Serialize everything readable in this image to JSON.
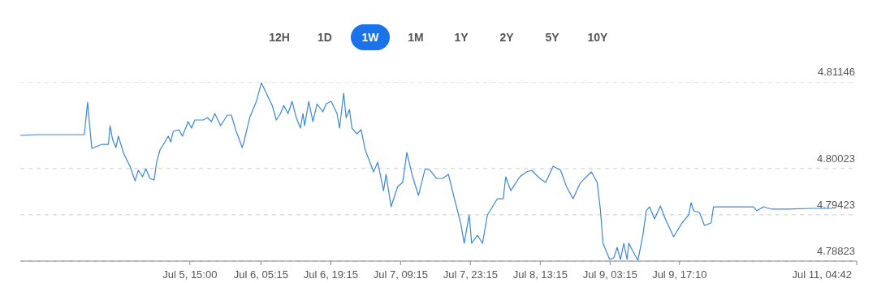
{
  "chart_data": {
    "type": "line",
    "annotations": [
      "12H",
      "1D",
      "1W",
      "1M",
      "1Y",
      "2Y",
      "5Y",
      "10Y"
    ],
    "x": [
      "--07-04T05:00",
      "--07-04T08:15",
      "--07-04T17:50",
      "--07-04T18:30",
      "--07-04T18:50",
      "--07-04T19:20",
      "--07-04T21:20",
      "--07-04T22:40",
      "--07-04T23:00",
      "--07-04T23:30",
      "--07-05T00:10",
      "--07-05T00:40",
      "--07-05T01:40",
      "--07-05T02:10",
      "--07-05T03:00",
      "--07-05T04:00",
      "--07-05T04:40",
      "--07-05T05:30",
      "--07-05T06:10",
      "--07-05T07:00",
      "--07-05T07:50",
      "--07-05T08:20",
      "--07-05T09:00",
      "--07-05T10:00",
      "--07-05T10:40",
      "--07-05T11:10",
      "--07-05T11:40",
      "--07-05T12:50",
      "--07-05T13:30",
      "--07-05T14:40",
      "--07-05T15:20",
      "--07-05T16:00",
      "--07-05T17:40",
      "--07-05T18:30",
      "--07-05T19:20",
      "--07-05T20:00",
      "--07-05T21:10",
      "--07-05T22:30",
      "--07-05T23:20",
      "--07-06T00:10",
      "--07-06T01:30",
      "--07-06T01:50",
      "--07-06T03:00",
      "--07-06T04:20",
      "--07-06T05:20",
      "--07-06T06:20",
      "--07-06T07:30",
      "--07-06T08:20",
      "--07-06T09:10",
      "--07-06T09:50",
      "--07-06T10:40",
      "--07-06T11:30",
      "--07-06T12:20",
      "--07-06T13:10",
      "--07-06T13:40",
      "--07-06T14:00",
      "--07-06T14:50",
      "--07-06T15:40",
      "--07-06T16:30",
      "--07-06T17:40",
      "--07-06T18:20",
      "--07-06T19:20",
      "--07-06T20:30",
      "--07-06T21:00",
      "--07-06T21:50",
      "--07-06T22:20",
      "--07-06T23:00",
      "--07-06T23:30",
      "--07-07T00:30",
      "--07-07T01:20",
      "--07-07T02:10",
      "--07-07T03:50",
      "--07-07T04:40",
      "--07-07T05:50",
      "--07-07T06:20",
      "--07-07T07:20",
      "--07-07T08:40",
      "--07-07T09:40",
      "--07-07T10:30",
      "--07-07T11:40",
      "--07-07T12:50",
      "--07-07T14:10",
      "--07-07T15:10",
      "--07-07T16:30",
      "--07-07T17:40",
      "--07-07T18:50",
      "--07-07T19:50",
      "--07-07T20:40",
      "--07-07T21:20",
      "--07-07T22:00",
      "--07-07T23:00",
      "--07-07T23:30",
      "--07-08T00:40",
      "--07-08T01:40",
      "--07-08T02:40",
      "--07-08T03:40",
      "--07-08T04:40",
      "--07-08T05:50",
      "--07-08T06:20",
      "--07-08T07:20",
      "--07-08T09:10",
      "--07-08T10:30",
      "--07-08T11:30",
      "--07-08T13:10",
      "--07-08T14:20",
      "--07-08T15:50",
      "--07-08T17:20",
      "--07-08T18:30",
      "--07-08T19:50",
      "--07-08T21:20",
      "--07-08T23:30",
      "--07-09T00:40",
      "--07-09T01:20",
      "--07-09T01:50",
      "--07-09T03:10",
      "--07-09T04:00",
      "--07-09T04:40",
      "--07-09T05:20",
      "--07-09T06:00",
      "--07-09T06:40",
      "--07-09T07:00",
      "--07-09T07:50",
      "--07-09T08:50",
      "--07-09T09:50",
      "--07-09T10:30",
      "--07-09T11:10",
      "--07-09T12:10",
      "--07-09T13:20",
      "--07-09T14:20",
      "--07-09T16:00",
      "--07-09T17:40",
      "--07-09T19:00",
      "--07-09T19:30",
      "--07-09T20:00",
      "--07-09T21:10",
      "--07-09T22:10",
      "--07-09T23:30",
      "--07-10T00:00",
      "--07-10T08:00",
      "--07-10T08:40",
      "--07-10T10:00",
      "--07-10T11:40",
      "--07-10T14:50",
      "--07-10T19:40",
      "--07-10T23:50"
    ],
    "series": [
      {
        "color": "#3a87d8",
        "values": [
          4.80452,
          4.80463,
          4.80463,
          4.80883,
          4.80631,
          4.80284,
          4.80336,
          4.80336,
          4.80578,
          4.804,
          4.80294,
          4.80442,
          4.80231,
          4.80158,
          4.80053,
          4.79863,
          4.8,
          4.79916,
          4.80021,
          4.79895,
          4.79874,
          4.80105,
          4.80263,
          4.80368,
          4.80442,
          4.80368,
          4.80505,
          4.80526,
          4.80442,
          4.80631,
          4.80547,
          4.80652,
          4.80652,
          4.80683,
          4.80631,
          4.80736,
          4.80578,
          4.80715,
          4.80715,
          4.80526,
          4.80294,
          4.80368,
          4.80683,
          4.80893,
          4.81135,
          4.80999,
          4.80841,
          4.80652,
          4.80736,
          4.80841,
          4.80736,
          4.80893,
          4.80683,
          4.80547,
          4.80736,
          4.80578,
          4.80893,
          4.80631,
          4.80862,
          4.80757,
          4.80862,
          4.80893,
          4.80736,
          4.80547,
          4.80999,
          4.80683,
          4.80788,
          4.80547,
          4.80473,
          4.80526,
          4.80263,
          4.79979,
          4.80105,
          4.79737,
          4.79948,
          4.79527,
          4.7979,
          4.79842,
          4.80231,
          4.79916,
          4.79674,
          4.80021,
          4.8,
          4.79895,
          4.79895,
          4.79948,
          4.79685,
          4.79475,
          4.79306,
          4.79054,
          4.79422,
          4.79054,
          4.79159,
          4.79054,
          4.79422,
          4.79527,
          4.79632,
          4.79632,
          4.79916,
          4.79737,
          4.79916,
          4.79979,
          4.8,
          4.79895,
          4.79842,
          4.80053,
          4.8,
          4.7979,
          4.79632,
          4.79842,
          4.79979,
          4.79842,
          4.79475,
          4.79054,
          4.78844,
          4.78865,
          4.79002,
          4.78844,
          4.79054,
          4.78844,
          4.79054,
          4.78949,
          4.78834,
          4.79159,
          4.79475,
          4.79527,
          4.7937,
          4.79538,
          4.7937,
          4.79138,
          4.79317,
          4.79422,
          4.7958,
          4.79475,
          4.79454,
          4.79285,
          4.79317,
          4.79527,
          4.79527,
          4.79475,
          4.79527,
          4.79496,
          4.79496,
          4.79506,
          4.79506
        ]
      }
    ],
    "xlim": [
      "--07-04T05:00",
      "--07-11T04:42"
    ],
    "xticks": [
      {
        "value": "--07-05T15:00",
        "label": "Jul 5, 15:00"
      },
      {
        "value": "--07-06T05:15",
        "label": "Jul 6, 05:15"
      },
      {
        "value": "--07-06T19:15",
        "label": "Jul 6, 19:15"
      },
      {
        "value": "--07-07T09:15",
        "label": "Jul 7, 09:15"
      },
      {
        "value": "--07-07T23:15",
        "label": "Jul 7, 23:15"
      },
      {
        "value": "--07-08T13:15",
        "label": "Jul 8, 13:15"
      },
      {
        "value": "--07-09T03:15",
        "label": "Jul 9, 03:15"
      },
      {
        "value": "--07-09T17:10",
        "label": "Jul 9, 17:10"
      },
      {
        "value": "--07-11T04:42",
        "label": "Jul 11, 04:42"
      }
    ],
    "ylim": [
      4.78823,
      4.81146
    ],
    "yticks": [
      4.78823,
      4.79423,
      4.80023,
      4.81146
    ],
    "grid": "y",
    "marker": "none",
    "line_style": "solid",
    "legend": false
  }
}
